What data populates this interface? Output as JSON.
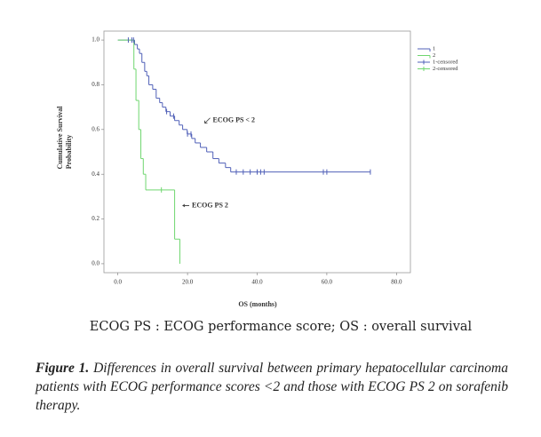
{
  "chart_data": {
    "type": "step",
    "ylabel": [
      "Cumulative Survival",
      "Probability"
    ],
    "xlabel": "OS (months)",
    "xlim": [
      -4,
      84
    ],
    "ylim": [
      -0.04,
      1.04
    ],
    "xticks": [
      {
        "value": 0,
        "label": "0.0"
      },
      {
        "value": 20,
        "label": "20.0"
      },
      {
        "value": 40,
        "label": "40.0"
      },
      {
        "value": 60,
        "label": "60.0"
      },
      {
        "value": 80,
        "label": "80.0"
      }
    ],
    "yticks": [
      {
        "value": 0,
        "label": "0.0"
      },
      0.2,
      0.4,
      0.6,
      0.8,
      {
        "value": 1,
        "label": "1.0"
      }
    ],
    "legend": "top-right",
    "series": [
      {
        "name": "1",
        "color": "#5060b8",
        "kind": "curve",
        "x": [
          0,
          4.8,
          5.6,
          6.2,
          6.9,
          7.7,
          8.3,
          8.9,
          10,
          11,
          12,
          12.8,
          13.8,
          15,
          16.3,
          17.6,
          18.6,
          19.9,
          21.2,
          22.2,
          23.7,
          25.5,
          27.3,
          29,
          30.9,
          32.4,
          72.5
        ],
        "values": [
          1.0,
          0.98,
          0.96,
          0.94,
          0.9,
          0.86,
          0.84,
          0.8,
          0.78,
          0.74,
          0.72,
          0.7,
          0.68,
          0.66,
          0.64,
          0.62,
          0.6,
          0.58,
          0.56,
          0.54,
          0.52,
          0.5,
          0.47,
          0.45,
          0.43,
          0.41,
          0.41
        ]
      },
      {
        "name": "2",
        "color": "#6fd66f",
        "kind": "curve",
        "x": [
          0,
          4.6,
          5.2,
          6,
          6.6,
          7.3,
          8,
          16.3,
          17.8
        ],
        "values": [
          1.0,
          0.87,
          0.73,
          0.6,
          0.47,
          0.4,
          0.33,
          0.11,
          0
        ]
      },
      {
        "name": "1-censored",
        "color": "#5060b8",
        "kind": "censored",
        "x": [
          3,
          4,
          4.5,
          14,
          16,
          20,
          21,
          34,
          36,
          38,
          40,
          41,
          42,
          59,
          60,
          72.5
        ],
        "values": [
          1.0,
          1.0,
          1.0,
          0.68,
          0.66,
          0.58,
          0.58,
          0.41,
          0.41,
          0.41,
          0.41,
          0.41,
          0.41,
          0.41,
          0.41,
          0.41
        ]
      },
      {
        "name": "2-censored",
        "color": "#6fd66f",
        "kind": "censored",
        "x": [
          12.5
        ],
        "values": [
          0.33
        ]
      }
    ],
    "annotations": [
      {
        "text": "ECOG PS < 2",
        "x": 27,
        "y": 0.64
      },
      {
        "text": "ECOG PS 2",
        "x": 21,
        "y": 0.26
      }
    ],
    "note": "ECOG PS : ECOG performance score; OS : overall survival"
  },
  "figure": {
    "label": "Figure 1.",
    "text": "Differences in overall survival between primary hepatocellular carcinoma patients with ECOG performance scores <2 and those with ECOG PS 2 on sorafenib therapy."
  }
}
